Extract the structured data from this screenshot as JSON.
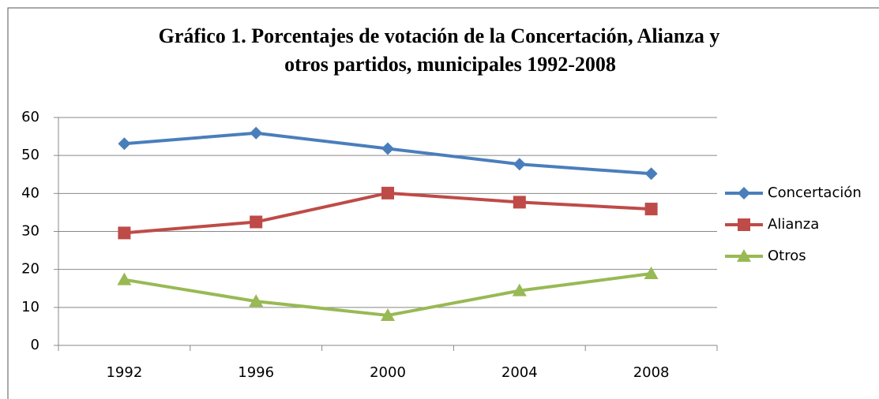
{
  "chart_data": {
    "type": "line",
    "title": [
      "Gráfico 1. Porcentajes de votación de la Concertación, Alianza y",
      "otros partidos, municipales 1992-2008"
    ],
    "categories": [
      "1992",
      "1996",
      "2000",
      "2004",
      "2008"
    ],
    "series": [
      {
        "name": "Concertación",
        "color": "#4a7ebb",
        "marker": "diamond",
        "values": [
          53.1,
          55.9,
          51.8,
          47.7,
          45.2
        ]
      },
      {
        "name": "Alianza",
        "color": "#be4b48",
        "marker": "square",
        "values": [
          29.6,
          32.5,
          40.1,
          37.7,
          35.9
        ]
      },
      {
        "name": "Otros",
        "color": "#98b954",
        "marker": "triangle",
        "values": [
          17.3,
          11.6,
          7.9,
          14.4,
          18.9
        ]
      }
    ],
    "ylim": [
      0,
      60
    ],
    "yticks": [
      0,
      10,
      20,
      30,
      40,
      50,
      60
    ],
    "grid": true,
    "legend": "right"
  }
}
